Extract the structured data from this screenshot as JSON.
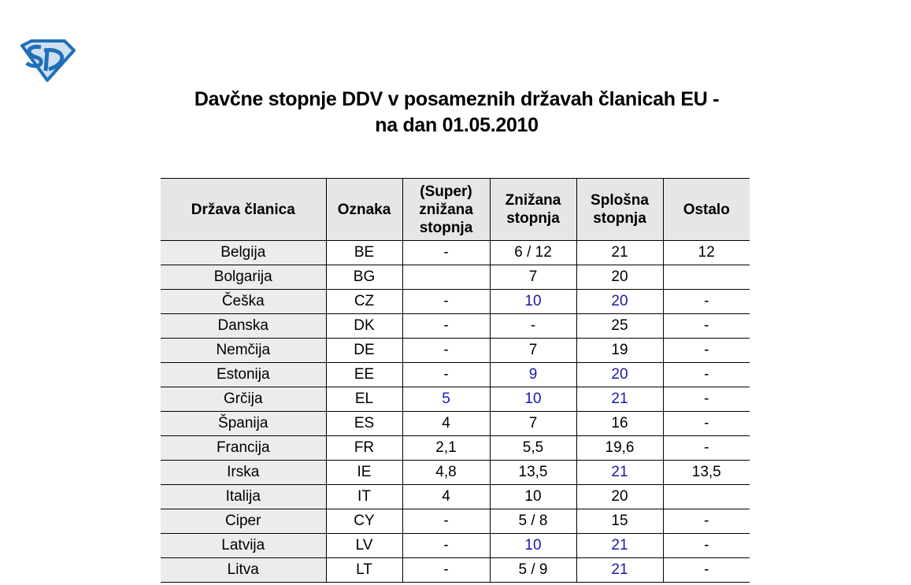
{
  "logo": {
    "text": "SD",
    "colors": {
      "outline": "#1f6fb8",
      "fill": "#cfe0f2"
    }
  },
  "title": {
    "line1": "Davčne stopnje DDV v posameznih državah članicah EU -",
    "line2": "na dan 01.05.2010"
  },
  "colors": {
    "highlight": "#1a1aa8",
    "header_bg": "#e6e6e6"
  },
  "table": {
    "headers": [
      "Država članica",
      "Oznaka",
      "(Super) znižana stopnja",
      "Znižana stopnja",
      "Splošna stopnja",
      "Ostalo"
    ],
    "rows": [
      [
        {
          "v": "Belgija"
        },
        {
          "v": "BE"
        },
        {
          "v": "-"
        },
        {
          "v": "6 / 12"
        },
        {
          "v": "21"
        },
        {
          "v": "12"
        }
      ],
      [
        {
          "v": "Bolgarija"
        },
        {
          "v": "BG"
        },
        {
          "v": ""
        },
        {
          "v": "7"
        },
        {
          "v": "20"
        },
        {
          "v": ""
        }
      ],
      [
        {
          "v": "Češka"
        },
        {
          "v": "CZ"
        },
        {
          "v": "-"
        },
        {
          "v": "10",
          "blue": true
        },
        {
          "v": "20",
          "blue": true
        },
        {
          "v": "-"
        }
      ],
      [
        {
          "v": "Danska"
        },
        {
          "v": "DK"
        },
        {
          "v": "-"
        },
        {
          "v": "-"
        },
        {
          "v": "25"
        },
        {
          "v": "-"
        }
      ],
      [
        {
          "v": "Nemčija"
        },
        {
          "v": "DE"
        },
        {
          "v": "-"
        },
        {
          "v": "7"
        },
        {
          "v": "19"
        },
        {
          "v": "-"
        }
      ],
      [
        {
          "v": "Estonija"
        },
        {
          "v": "EE"
        },
        {
          "v": "-"
        },
        {
          "v": "9",
          "blue": true
        },
        {
          "v": "20",
          "blue": true
        },
        {
          "v": "-"
        }
      ],
      [
        {
          "v": "Grčija"
        },
        {
          "v": "EL"
        },
        {
          "v": "5",
          "blue": true
        },
        {
          "v": "10",
          "blue": true
        },
        {
          "v": "21",
          "blue": true
        },
        {
          "v": "-"
        }
      ],
      [
        {
          "v": "Španija"
        },
        {
          "v": "ES"
        },
        {
          "v": "4"
        },
        {
          "v": "7"
        },
        {
          "v": "16"
        },
        {
          "v": "-"
        }
      ],
      [
        {
          "v": "Francija"
        },
        {
          "v": "FR"
        },
        {
          "v": "2,1"
        },
        {
          "v": "5,5"
        },
        {
          "v": "19,6"
        },
        {
          "v": "-"
        }
      ],
      [
        {
          "v": "Irska"
        },
        {
          "v": "IE"
        },
        {
          "v": "4,8"
        },
        {
          "v": "13,5"
        },
        {
          "v": "21",
          "blue": true
        },
        {
          "v": "13,5"
        }
      ],
      [
        {
          "v": "Italija"
        },
        {
          "v": "IT"
        },
        {
          "v": "4"
        },
        {
          "v": "10"
        },
        {
          "v": "20"
        },
        {
          "v": ""
        }
      ],
      [
        {
          "v": "Ciper"
        },
        {
          "v": "CY"
        },
        {
          "v": "-"
        },
        {
          "v": "5 / 8"
        },
        {
          "v": "15"
        },
        {
          "v": "-"
        }
      ],
      [
        {
          "v": "Latvija"
        },
        {
          "v": "LV"
        },
        {
          "v": "-"
        },
        {
          "v": "10",
          "blue": true
        },
        {
          "v": "21",
          "blue": true
        },
        {
          "v": "-"
        }
      ],
      [
        {
          "v": "Litva"
        },
        {
          "v": "LT"
        },
        {
          "v": "-"
        },
        {
          "v": "5 / 9"
        },
        {
          "v": "21",
          "blue": true
        },
        {
          "v": "-"
        }
      ]
    ]
  }
}
